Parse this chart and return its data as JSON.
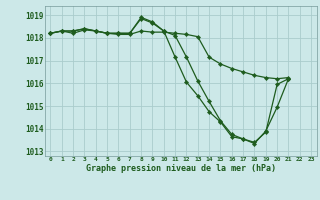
{
  "title": "Graphe pression niveau de la mer (hPa)",
  "bg_color": "#cce8e8",
  "grid_color": "#aacccc",
  "line_color": "#1e5c1e",
  "xlim": [
    -0.5,
    23.5
  ],
  "ylim": [
    1012.8,
    1019.4
  ],
  "yticks": [
    1013,
    1014,
    1015,
    1016,
    1017,
    1018,
    1019
  ],
  "xticks": [
    0,
    1,
    2,
    3,
    4,
    5,
    6,
    7,
    8,
    9,
    10,
    11,
    12,
    13,
    14,
    15,
    16,
    17,
    18,
    19,
    20,
    21,
    22,
    23
  ],
  "series": [
    {
      "x": [
        0,
        1,
        2,
        3,
        4,
        5,
        6,
        7,
        8,
        9,
        10,
        11,
        12,
        13,
        14,
        15,
        16,
        17,
        18,
        19,
        20,
        21
      ],
      "y": [
        1018.2,
        1018.3,
        1018.3,
        1018.4,
        1018.3,
        1018.2,
        1018.2,
        1018.2,
        1018.85,
        1018.65,
        1018.3,
        1018.1,
        1017.15,
        1016.1,
        1015.2,
        1014.35,
        1013.75,
        1013.55,
        1013.4,
        1013.85,
        1015.95,
        1016.2
      ]
    },
    {
      "x": [
        0,
        1,
        2,
        3,
        4,
        5,
        6,
        7,
        8,
        9,
        10,
        11,
        12,
        13,
        14,
        15,
        16,
        17,
        18,
        19,
        20,
        21
      ],
      "y": [
        1018.2,
        1018.3,
        1018.3,
        1018.4,
        1018.3,
        1018.2,
        1018.2,
        1018.2,
        1018.9,
        1018.7,
        1018.3,
        1017.15,
        1016.05,
        1015.45,
        1014.75,
        1014.3,
        1013.65,
        1013.55,
        1013.35,
        1013.9,
        1014.95,
        1016.2
      ]
    },
    {
      "x": [
        0,
        1,
        2,
        3,
        4,
        5,
        6,
        7,
        8,
        9,
        10,
        11,
        12,
        13,
        14,
        15,
        16,
        17,
        18,
        19,
        20,
        21
      ],
      "y": [
        1018.2,
        1018.3,
        1018.2,
        1018.35,
        1018.3,
        1018.2,
        1018.15,
        1018.15,
        1018.3,
        1018.25,
        1018.25,
        1018.2,
        1018.15,
        1018.05,
        1017.15,
        1016.85,
        1016.65,
        1016.5,
        1016.35,
        1016.25,
        1016.2,
        1016.25
      ]
    }
  ]
}
